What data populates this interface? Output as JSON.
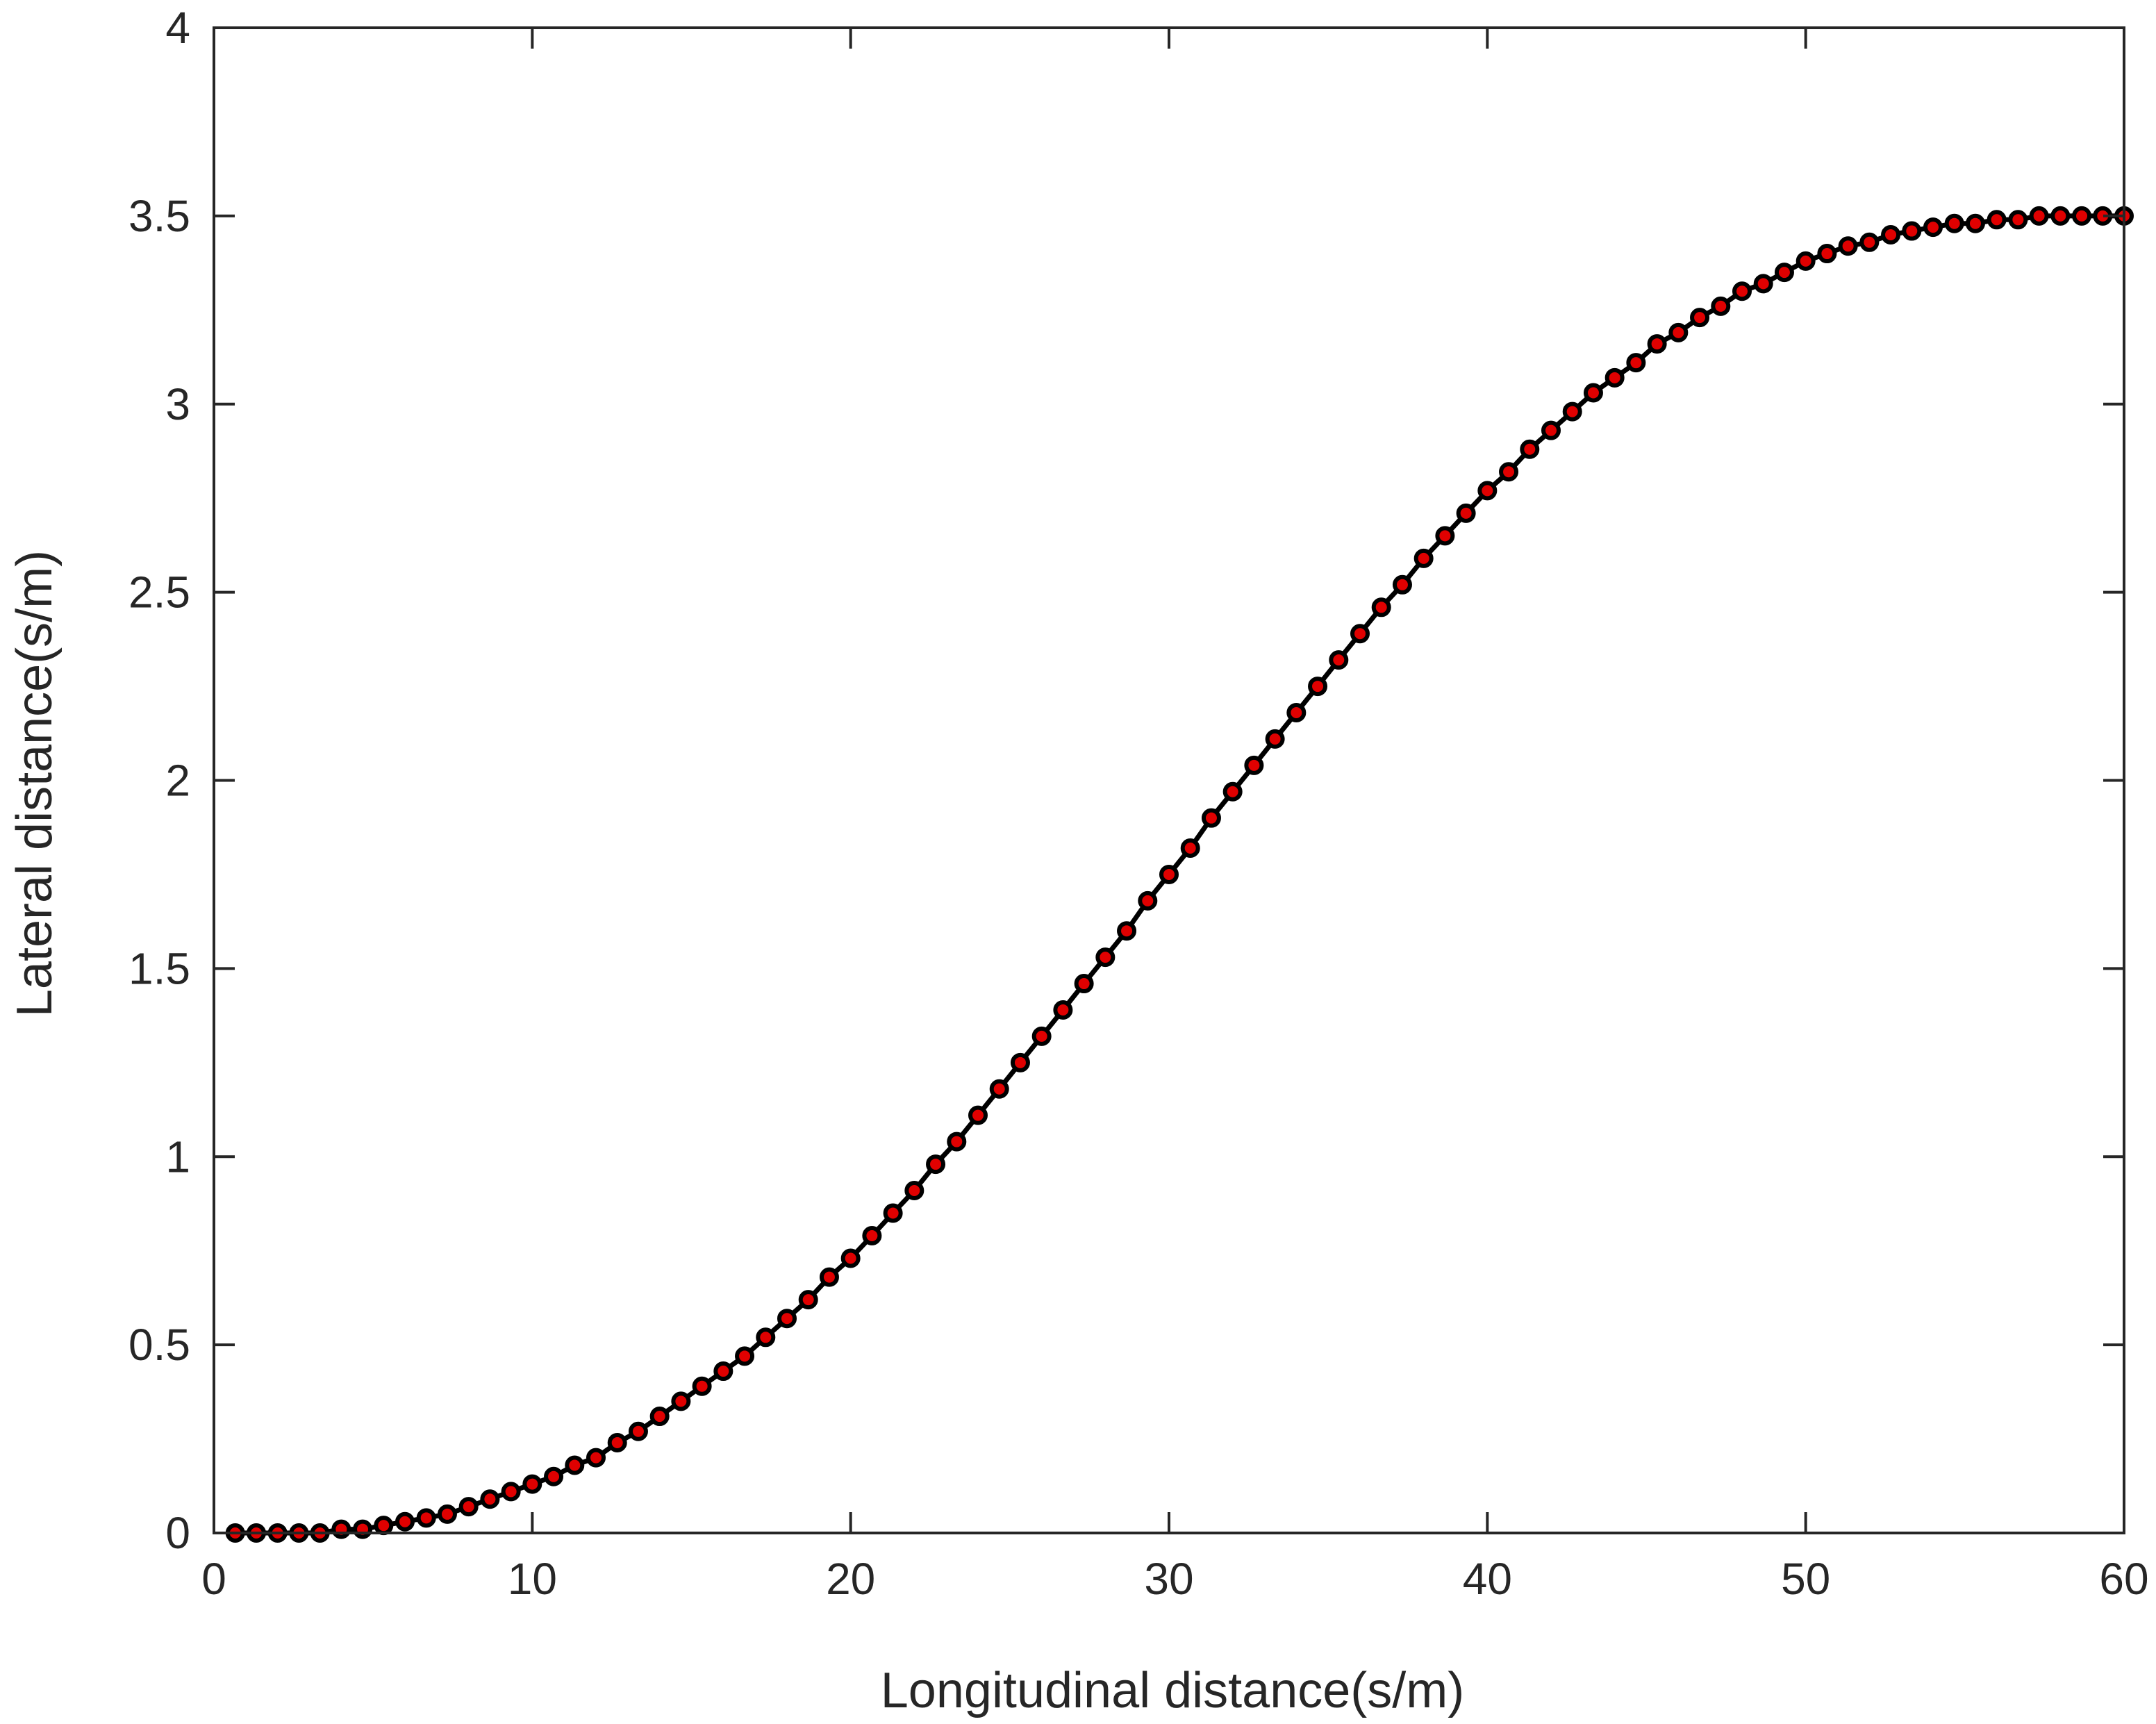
{
  "chart_data": {
    "type": "scatter",
    "title": "",
    "xlabel": "Longitudinal distance(s/m)",
    "ylabel": "Lateral distance(s/m)",
    "xlim": [
      0,
      60
    ],
    "ylim": [
      0,
      4
    ],
    "xticks": [
      0,
      10,
      20,
      30,
      40,
      50,
      60
    ],
    "xtick_labels": [
      "0",
      "10",
      "20",
      "30",
      "40",
      "50",
      "60"
    ],
    "yticks": [
      0,
      0.5,
      1,
      1.5,
      2,
      2.5,
      3,
      3.5,
      4
    ],
    "ytick_labels": [
      "0",
      "0.5",
      "1",
      "1.5",
      "2",
      "2.5",
      "3",
      "3.5",
      "4"
    ],
    "grid": false,
    "legend": "none",
    "line_color": "#000000",
    "marker_edge_color": "#000000",
    "marker_fill_color": "#e00000",
    "series": [
      {
        "x": [
          0.67,
          1.33,
          2.0,
          2.67,
          3.33,
          4.0,
          4.67,
          5.33,
          6.0,
          6.67,
          7.33,
          8.0,
          8.67,
          9.33,
          10.0,
          10.67,
          11.33,
          12.0,
          12.67,
          13.33,
          14.0,
          14.67,
          15.33,
          16.0,
          16.67,
          17.33,
          18.0,
          18.67,
          19.33,
          20.0,
          20.67,
          21.33,
          22.0,
          22.67,
          23.33,
          24.0,
          24.67,
          25.33,
          26.0,
          26.67,
          27.33,
          28.0,
          28.67,
          29.33,
          30.0,
          30.67,
          31.33,
          32.0,
          32.67,
          33.33,
          34.0,
          34.67,
          35.33,
          36.0,
          36.67,
          37.33,
          38.0,
          38.67,
          39.33,
          40.0,
          40.67,
          41.33,
          42.0,
          42.67,
          43.33,
          44.0,
          44.67,
          45.33,
          46.0,
          46.67,
          47.33,
          48.0,
          48.67,
          49.33,
          50.0,
          50.67,
          51.33,
          52.0,
          52.67,
          53.33,
          54.0,
          54.67,
          55.33,
          56.0,
          56.67,
          57.33,
          58.0,
          58.67,
          59.33,
          60.0
        ],
        "y": [
          0.0,
          0.0,
          0.0,
          0.0,
          0.0,
          0.01,
          0.01,
          0.02,
          0.03,
          0.04,
          0.05,
          0.07,
          0.09,
          0.11,
          0.13,
          0.15,
          0.18,
          0.2,
          0.24,
          0.27,
          0.31,
          0.35,
          0.39,
          0.43,
          0.47,
          0.52,
          0.57,
          0.62,
          0.68,
          0.73,
          0.79,
          0.85,
          0.91,
          0.98,
          1.04,
          1.11,
          1.18,
          1.25,
          1.32,
          1.39,
          1.46,
          1.53,
          1.6,
          1.68,
          1.75,
          1.82,
          1.9,
          1.97,
          2.04,
          2.11,
          2.18,
          2.25,
          2.32,
          2.39,
          2.46,
          2.52,
          2.59,
          2.65,
          2.71,
          2.77,
          2.82,
          2.88,
          2.93,
          2.98,
          3.03,
          3.07,
          3.11,
          3.16,
          3.19,
          3.23,
          3.26,
          3.3,
          3.32,
          3.35,
          3.38,
          3.4,
          3.42,
          3.43,
          3.45,
          3.46,
          3.47,
          3.48,
          3.48,
          3.49,
          3.49,
          3.5,
          3.5,
          3.5,
          3.5,
          3.5
        ]
      }
    ]
  }
}
